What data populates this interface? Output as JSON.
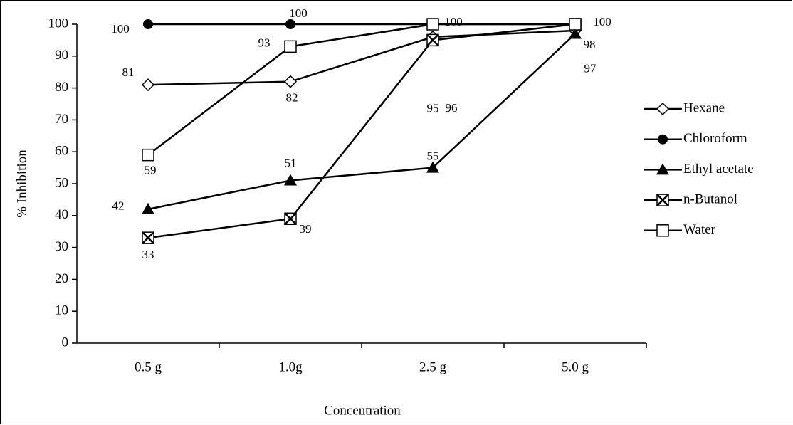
{
  "chart_data": {
    "type": "line",
    "categories": [
      "0.5 g",
      "1.0g",
      "2.5 g",
      "5.0 g"
    ],
    "x_label": "Concentration",
    "y_label": "% Inhibition",
    "ylim": [
      0,
      100
    ],
    "yticks": [
      0,
      10,
      20,
      30,
      40,
      50,
      60,
      70,
      80,
      90,
      100
    ],
    "series": [
      {
        "name": "Hexane",
        "color": "#000000",
        "marker": "diamond",
        "values": [
          81,
          82,
          96,
          98
        ],
        "value_labels": [
          "81",
          "82",
          "96",
          "98"
        ]
      },
      {
        "name": "Chloroform",
        "color": "#000000",
        "marker": "circle",
        "values": [
          100,
          100,
          100,
          100
        ],
        "value_labels": [
          "100",
          "100",
          null,
          null
        ]
      },
      {
        "name": "Ethyl acetate",
        "color": "#000000",
        "marker": "triangle",
        "values": [
          42,
          51,
          55,
          97
        ],
        "value_labels": [
          "42",
          "51",
          "55",
          "97"
        ]
      },
      {
        "name": "n-Butanol",
        "color": "#000000",
        "marker": "boxed-x",
        "values": [
          33,
          39,
          95,
          100
        ],
        "value_labels": [
          "33",
          "39",
          "95",
          null
        ]
      },
      {
        "name": "Water",
        "color": "#000000",
        "marker": "square",
        "values": [
          59,
          93,
          100,
          100
        ],
        "value_labels": [
          "59",
          "93",
          "100",
          "100"
        ]
      }
    ]
  }
}
